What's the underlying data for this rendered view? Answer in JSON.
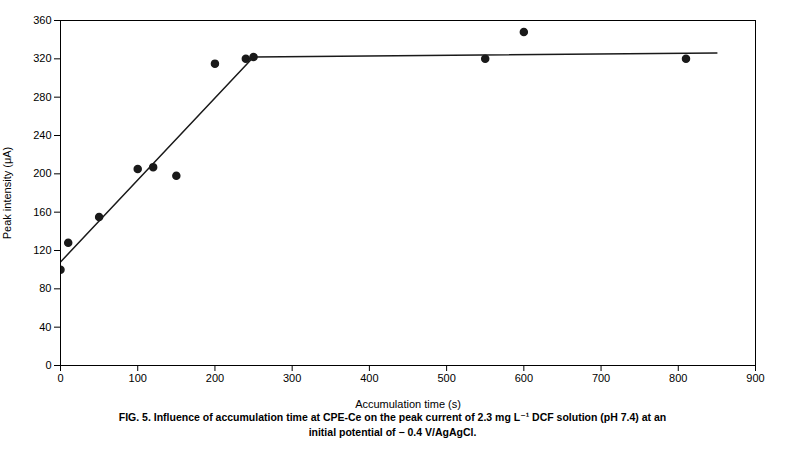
{
  "chart_data": {
    "type": "scatter",
    "caption": [
      "FIG. 5. Influence of accumulation time at CPE-Ce on the peak current of 2.3 mg L⁻¹ DCF solution (pH 7.4) at an",
      "initial potential of − 0.4 V/AgAgCl."
    ],
    "xlabel": "Accumulation time (s)",
    "ylabel": "Peak intensity (μA)",
    "series": [
      {
        "type": "line",
        "color": "#1a1a1a",
        "line_style": "solid",
        "x": [
          0,
          250,
          850
        ],
        "values": [
          108,
          322,
          326
        ]
      },
      {
        "type": "scatter",
        "color": "#1a1a1a",
        "marker": "circle",
        "x": [
          0,
          10,
          50,
          100,
          120,
          150,
          200,
          240,
          250,
          550,
          600,
          810
        ],
        "values": [
          100,
          128,
          155,
          205,
          207,
          198,
          315,
          320,
          322,
          320,
          348,
          320
        ]
      }
    ],
    "xlim": [
      0,
      900
    ],
    "ylim": [
      0,
      360
    ],
    "xticks": [
      0,
      100,
      200,
      300,
      400,
      500,
      600,
      700,
      800,
      900
    ],
    "yticks": [
      0,
      40,
      80,
      120,
      160,
      200,
      240,
      280,
      320,
      360
    ],
    "grid": false
  }
}
